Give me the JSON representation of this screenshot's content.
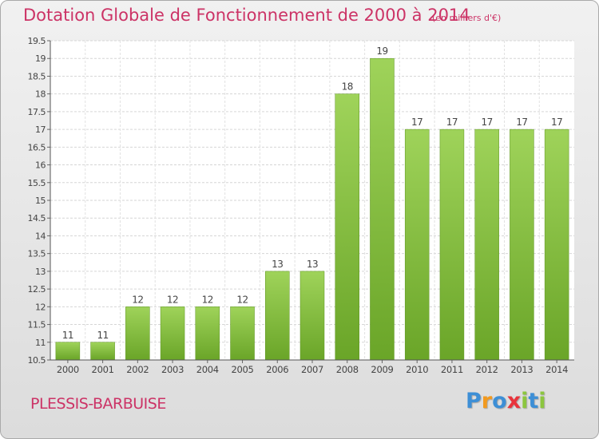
{
  "title": "Dotation Globale de Fonctionnement de 2000 à 2014",
  "unit": "(en milliers d'€)",
  "commune": "PLESSIS-BARBUISE",
  "logo": {
    "letters": [
      "P",
      "r",
      "o",
      "x",
      "i",
      "t",
      "i"
    ],
    "colors": [
      "#3d8fd6",
      "#f29a1f",
      "#3d8fd6",
      "#e8343c",
      "#8cc63f",
      "#3d8fd6",
      "#8cc63f"
    ]
  },
  "colors": {
    "title": "#cc3366",
    "bar_light": "#9fd35a",
    "bar_dark": "#6aa528"
  },
  "chart_data": {
    "type": "bar",
    "title": "Dotation Globale de Fonctionnement de 2000 à 2014",
    "subtitle": "(en milliers d'€)",
    "xlabel": "",
    "ylabel": "",
    "categories": [
      "2000",
      "2001",
      "2002",
      "2003",
      "2004",
      "2005",
      "2006",
      "2007",
      "2008",
      "2009",
      "2010",
      "2011",
      "2012",
      "2013",
      "2014"
    ],
    "values": [
      11,
      11,
      12,
      12,
      12,
      12,
      13,
      13,
      18,
      19,
      17,
      17,
      17,
      17,
      17
    ],
    "data_labels": [
      "11",
      "11",
      "12",
      "12",
      "12",
      "12",
      "13",
      "13",
      "18",
      "19",
      "17",
      "17",
      "17",
      "17",
      "17"
    ],
    "ylim": [
      10.5,
      19.5
    ],
    "yticks": [
      10.5,
      11,
      11.5,
      12,
      12.5,
      13,
      13.5,
      14,
      14.5,
      15,
      15.5,
      16,
      16.5,
      17,
      17.5,
      18,
      18.5,
      19,
      19.5
    ],
    "ytick_labels": [
      "10.5",
      "11",
      "11.5",
      "12",
      "12.5",
      "13",
      "13.5",
      "14",
      "14.5",
      "15",
      "15.5",
      "16",
      "16.5",
      "17",
      "17.5",
      "18",
      "18.5",
      "19",
      "19.5"
    ],
    "grid": true,
    "legend": "none"
  }
}
